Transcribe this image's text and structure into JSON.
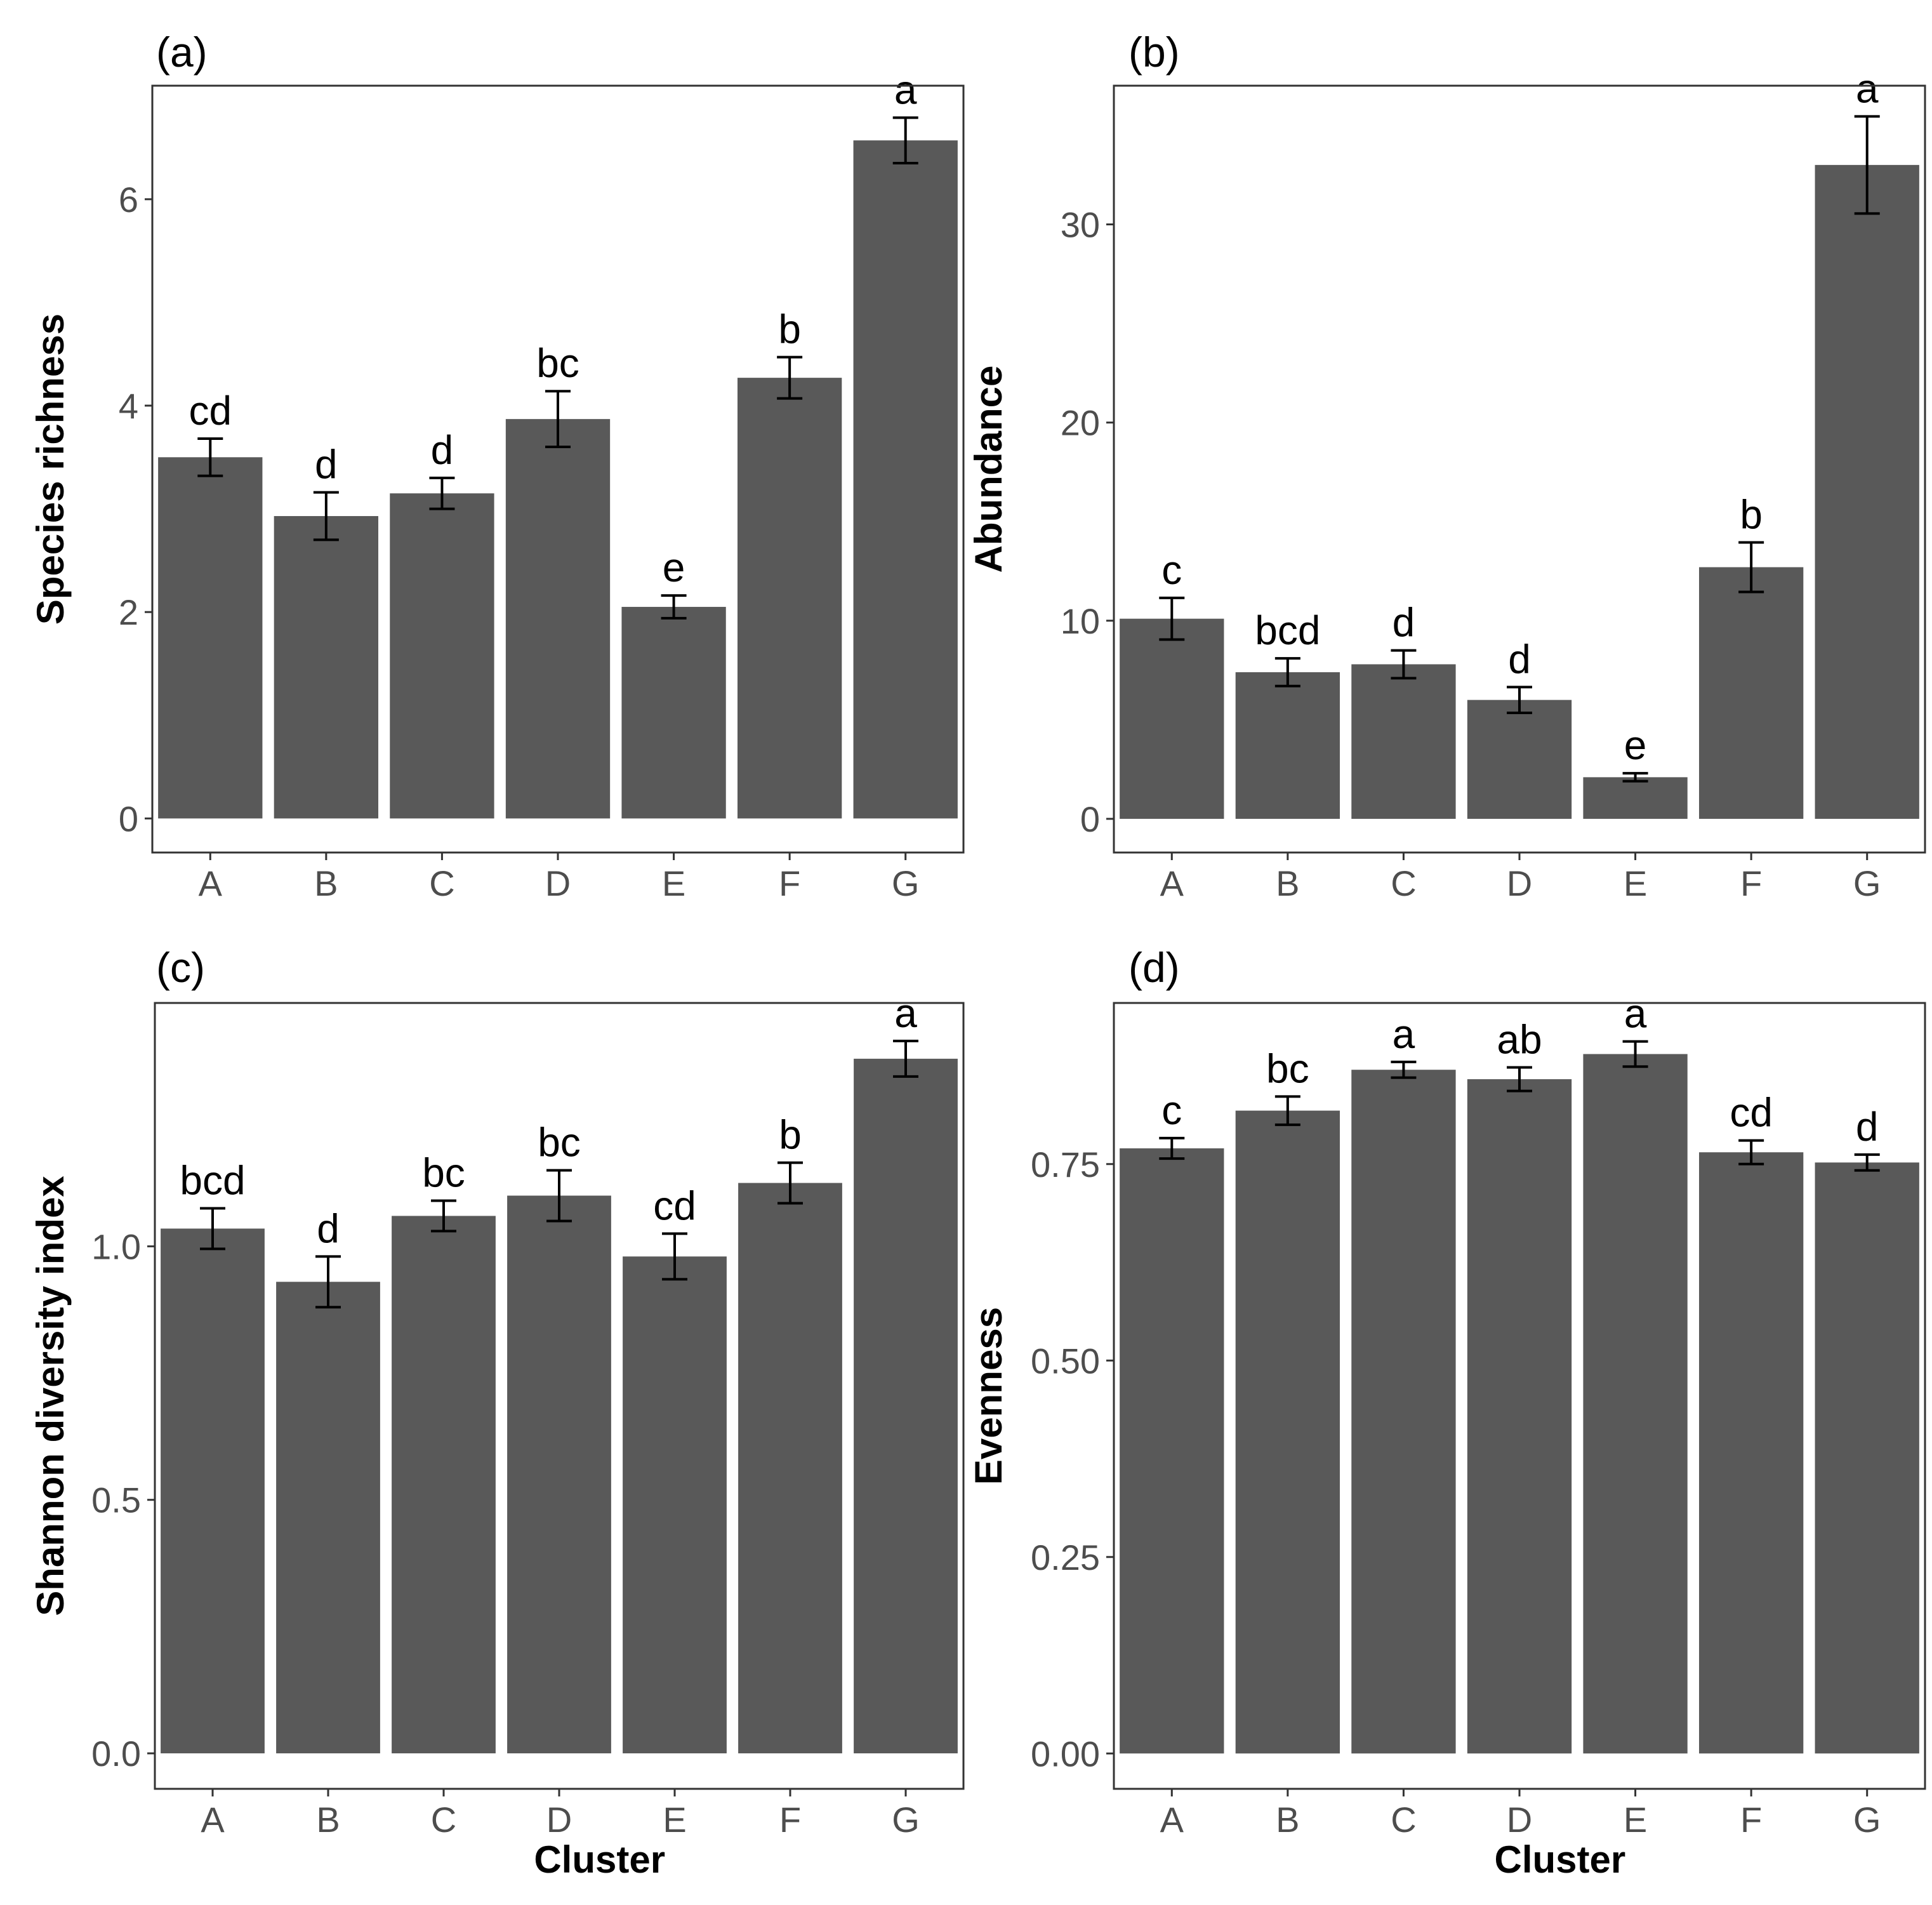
{
  "chart_data": [
    {
      "id": "a",
      "type": "bar",
      "panel_label": "(a)",
      "categories": [
        "A",
        "B",
        "C",
        "D",
        "E",
        "F",
        "G"
      ],
      "values": [
        3.5,
        2.93,
        3.15,
        3.87,
        2.05,
        4.27,
        6.57
      ],
      "errors": [
        0.18,
        0.23,
        0.15,
        0.27,
        0.11,
        0.2,
        0.22
      ],
      "sig_letters": [
        "cd",
        "d",
        "d",
        "bc",
        "e",
        "b",
        "a"
      ],
      "xlabel": "",
      "ylabel": "Species richness",
      "ylim": [
        -0.33,
        7.1
      ],
      "yticks": [
        0,
        2,
        4,
        6
      ],
      "ytick_labels": [
        "0",
        "2",
        "4",
        "6"
      ],
      "grid": false
    },
    {
      "id": "b",
      "type": "bar",
      "panel_label": "(b)",
      "categories": [
        "A",
        "B",
        "C",
        "D",
        "E",
        "F",
        "G"
      ],
      "values": [
        10.1,
        7.4,
        7.8,
        6.0,
        2.1,
        12.7,
        33.0
      ],
      "errors": [
        1.05,
        0.7,
        0.7,
        0.65,
        0.2,
        1.25,
        2.45
      ],
      "sig_letters": [
        "c",
        "bcd",
        "d",
        "d",
        "e",
        "b",
        "a"
      ],
      "xlabel": "",
      "ylabel": "Abundance",
      "ylim": [
        -1.7,
        37.0
      ],
      "yticks": [
        0,
        10,
        20,
        30
      ],
      "ytick_labels": [
        "0",
        "10",
        "20",
        "30"
      ],
      "grid": false
    },
    {
      "id": "c",
      "type": "bar",
      "panel_label": "(c)",
      "categories": [
        "A",
        "B",
        "C",
        "D",
        "E",
        "F",
        "G"
      ],
      "values": [
        1.035,
        0.93,
        1.06,
        1.1,
        0.98,
        1.125,
        1.37
      ],
      "errors": [
        0.04,
        0.05,
        0.03,
        0.05,
        0.045,
        0.04,
        0.035
      ],
      "sig_letters": [
        "bcd",
        "d",
        "bc",
        "bc",
        "cd",
        "b",
        "a"
      ],
      "xlabel": "Cluster",
      "ylabel": "Shannon diversity index",
      "ylim": [
        -0.07,
        1.48
      ],
      "yticks": [
        0,
        0.5,
        1.0
      ],
      "ytick_labels": [
        "0.0",
        "0.5",
        "1.0"
      ],
      "grid": false
    },
    {
      "id": "d",
      "type": "bar",
      "panel_label": "(d)",
      "categories": [
        "A",
        "B",
        "C",
        "D",
        "E",
        "F",
        "G"
      ],
      "values": [
        0.77,
        0.818,
        0.87,
        0.858,
        0.89,
        0.765,
        0.752
      ],
      "errors": [
        0.013,
        0.018,
        0.01,
        0.015,
        0.016,
        0.015,
        0.01
      ],
      "sig_letters": [
        "c",
        "bc",
        "a",
        "ab",
        "a",
        "cd",
        "d"
      ],
      "xlabel": "Cluster",
      "ylabel": "Evenness",
      "ylim": [
        -0.045,
        0.955
      ],
      "yticks": [
        0,
        0.25,
        0.5,
        0.75
      ],
      "ytick_labels": [
        "0.00",
        "0.25",
        "0.50",
        "0.75"
      ],
      "grid": false
    }
  ]
}
